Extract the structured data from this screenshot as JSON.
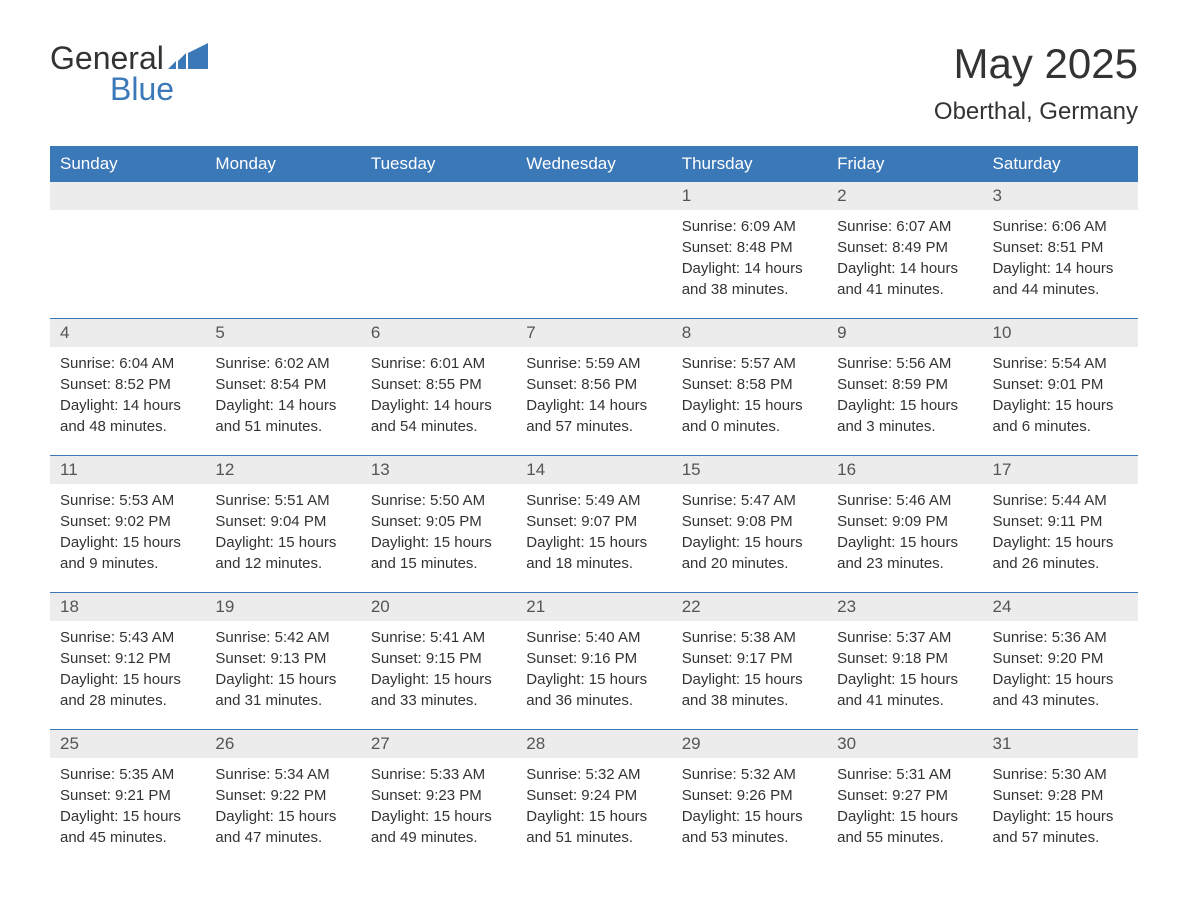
{
  "brand": {
    "text_general": "General",
    "text_blue": "Blue",
    "icon_color": "#3b78b8",
    "icon_color_accent": "#5a94cc"
  },
  "header": {
    "title": "May 2025",
    "location": "Oberthal, Germany"
  },
  "colors": {
    "header_bg": "#3b78b8",
    "header_text": "#ffffff",
    "daynum_bg": "#ececec",
    "daynum_text": "#555555",
    "body_text": "#333333",
    "row_divider": "#3b78b8",
    "page_bg": "#ffffff"
  },
  "day_labels": [
    "Sunday",
    "Monday",
    "Tuesday",
    "Wednesday",
    "Thursday",
    "Friday",
    "Saturday"
  ],
  "weeks": [
    [
      {
        "day": "",
        "sunrise": "",
        "sunset": "",
        "daylight": "",
        "empty": true
      },
      {
        "day": "",
        "sunrise": "",
        "sunset": "",
        "daylight": "",
        "empty": true
      },
      {
        "day": "",
        "sunrise": "",
        "sunset": "",
        "daylight": "",
        "empty": true
      },
      {
        "day": "",
        "sunrise": "",
        "sunset": "",
        "daylight": "",
        "empty": true
      },
      {
        "day": "1",
        "sunrise": "Sunrise: 6:09 AM",
        "sunset": "Sunset: 8:48 PM",
        "daylight": "Daylight: 14 hours and 38 minutes."
      },
      {
        "day": "2",
        "sunrise": "Sunrise: 6:07 AM",
        "sunset": "Sunset: 8:49 PM",
        "daylight": "Daylight: 14 hours and 41 minutes."
      },
      {
        "day": "3",
        "sunrise": "Sunrise: 6:06 AM",
        "sunset": "Sunset: 8:51 PM",
        "daylight": "Daylight: 14 hours and 44 minutes."
      }
    ],
    [
      {
        "day": "4",
        "sunrise": "Sunrise: 6:04 AM",
        "sunset": "Sunset: 8:52 PM",
        "daylight": "Daylight: 14 hours and 48 minutes."
      },
      {
        "day": "5",
        "sunrise": "Sunrise: 6:02 AM",
        "sunset": "Sunset: 8:54 PM",
        "daylight": "Daylight: 14 hours and 51 minutes."
      },
      {
        "day": "6",
        "sunrise": "Sunrise: 6:01 AM",
        "sunset": "Sunset: 8:55 PM",
        "daylight": "Daylight: 14 hours and 54 minutes."
      },
      {
        "day": "7",
        "sunrise": "Sunrise: 5:59 AM",
        "sunset": "Sunset: 8:56 PM",
        "daylight": "Daylight: 14 hours and 57 minutes."
      },
      {
        "day": "8",
        "sunrise": "Sunrise: 5:57 AM",
        "sunset": "Sunset: 8:58 PM",
        "daylight": "Daylight: 15 hours and 0 minutes."
      },
      {
        "day": "9",
        "sunrise": "Sunrise: 5:56 AM",
        "sunset": "Sunset: 8:59 PM",
        "daylight": "Daylight: 15 hours and 3 minutes."
      },
      {
        "day": "10",
        "sunrise": "Sunrise: 5:54 AM",
        "sunset": "Sunset: 9:01 PM",
        "daylight": "Daylight: 15 hours and 6 minutes."
      }
    ],
    [
      {
        "day": "11",
        "sunrise": "Sunrise: 5:53 AM",
        "sunset": "Sunset: 9:02 PM",
        "daylight": "Daylight: 15 hours and 9 minutes."
      },
      {
        "day": "12",
        "sunrise": "Sunrise: 5:51 AM",
        "sunset": "Sunset: 9:04 PM",
        "daylight": "Daylight: 15 hours and 12 minutes."
      },
      {
        "day": "13",
        "sunrise": "Sunrise: 5:50 AM",
        "sunset": "Sunset: 9:05 PM",
        "daylight": "Daylight: 15 hours and 15 minutes."
      },
      {
        "day": "14",
        "sunrise": "Sunrise: 5:49 AM",
        "sunset": "Sunset: 9:07 PM",
        "daylight": "Daylight: 15 hours and 18 minutes."
      },
      {
        "day": "15",
        "sunrise": "Sunrise: 5:47 AM",
        "sunset": "Sunset: 9:08 PM",
        "daylight": "Daylight: 15 hours and 20 minutes."
      },
      {
        "day": "16",
        "sunrise": "Sunrise: 5:46 AM",
        "sunset": "Sunset: 9:09 PM",
        "daylight": "Daylight: 15 hours and 23 minutes."
      },
      {
        "day": "17",
        "sunrise": "Sunrise: 5:44 AM",
        "sunset": "Sunset: 9:11 PM",
        "daylight": "Daylight: 15 hours and 26 minutes."
      }
    ],
    [
      {
        "day": "18",
        "sunrise": "Sunrise: 5:43 AM",
        "sunset": "Sunset: 9:12 PM",
        "daylight": "Daylight: 15 hours and 28 minutes."
      },
      {
        "day": "19",
        "sunrise": "Sunrise: 5:42 AM",
        "sunset": "Sunset: 9:13 PM",
        "daylight": "Daylight: 15 hours and 31 minutes."
      },
      {
        "day": "20",
        "sunrise": "Sunrise: 5:41 AM",
        "sunset": "Sunset: 9:15 PM",
        "daylight": "Daylight: 15 hours and 33 minutes."
      },
      {
        "day": "21",
        "sunrise": "Sunrise: 5:40 AM",
        "sunset": "Sunset: 9:16 PM",
        "daylight": "Daylight: 15 hours and 36 minutes."
      },
      {
        "day": "22",
        "sunrise": "Sunrise: 5:38 AM",
        "sunset": "Sunset: 9:17 PM",
        "daylight": "Daylight: 15 hours and 38 minutes."
      },
      {
        "day": "23",
        "sunrise": "Sunrise: 5:37 AM",
        "sunset": "Sunset: 9:18 PM",
        "daylight": "Daylight: 15 hours and 41 minutes."
      },
      {
        "day": "24",
        "sunrise": "Sunrise: 5:36 AM",
        "sunset": "Sunset: 9:20 PM",
        "daylight": "Daylight: 15 hours and 43 minutes."
      }
    ],
    [
      {
        "day": "25",
        "sunrise": "Sunrise: 5:35 AM",
        "sunset": "Sunset: 9:21 PM",
        "daylight": "Daylight: 15 hours and 45 minutes."
      },
      {
        "day": "26",
        "sunrise": "Sunrise: 5:34 AM",
        "sunset": "Sunset: 9:22 PM",
        "daylight": "Daylight: 15 hours and 47 minutes."
      },
      {
        "day": "27",
        "sunrise": "Sunrise: 5:33 AM",
        "sunset": "Sunset: 9:23 PM",
        "daylight": "Daylight: 15 hours and 49 minutes."
      },
      {
        "day": "28",
        "sunrise": "Sunrise: 5:32 AM",
        "sunset": "Sunset: 9:24 PM",
        "daylight": "Daylight: 15 hours and 51 minutes."
      },
      {
        "day": "29",
        "sunrise": "Sunrise: 5:32 AM",
        "sunset": "Sunset: 9:26 PM",
        "daylight": "Daylight: 15 hours and 53 minutes."
      },
      {
        "day": "30",
        "sunrise": "Sunrise: 5:31 AM",
        "sunset": "Sunset: 9:27 PM",
        "daylight": "Daylight: 15 hours and 55 minutes."
      },
      {
        "day": "31",
        "sunrise": "Sunrise: 5:30 AM",
        "sunset": "Sunset: 9:28 PM",
        "daylight": "Daylight: 15 hours and 57 minutes."
      }
    ]
  ]
}
